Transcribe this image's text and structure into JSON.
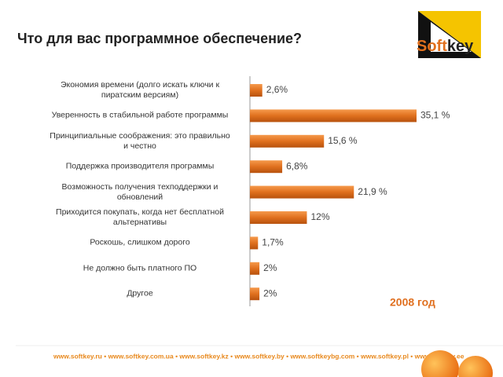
{
  "chart_data": {
    "type": "bar",
    "orientation": "horizontal",
    "title": "Что для вас программное обеспечение?",
    "annotation": "2008 год",
    "categories": [
      "Экономия времени (долго искать ключи к пиратским версиям)",
      "Уверенность в стабильной работе программы",
      "Принципиальные соображения: это правильно и честно",
      "Поддержка производителя программы",
      "Возможность получения техподдержки и обновлений",
      "Приходится покупать, когда нет бесплатной альтернативы",
      "Роскошь, слишком дорого",
      "Не должно быть платного ПО",
      "Другое"
    ],
    "values": [
      2.6,
      35.1,
      15.6,
      6.8,
      21.9,
      12,
      1.7,
      2,
      2
    ],
    "value_labels": [
      "2,6%",
      "35,1 %",
      "15,6 %",
      "6,8%",
      "21,9 %",
      "12%",
      "1,7%",
      "2%",
      "2%"
    ],
    "color": "#e0701e"
  },
  "logo": {
    "part1": "Soft",
    "part2": "key"
  },
  "footer": "www.softkey.ru • www.softkey.com.ua • www.softkey.kz • www.softkey.by • www.softkeybg.com • www.softkey.pl • www.softkey.ee"
}
